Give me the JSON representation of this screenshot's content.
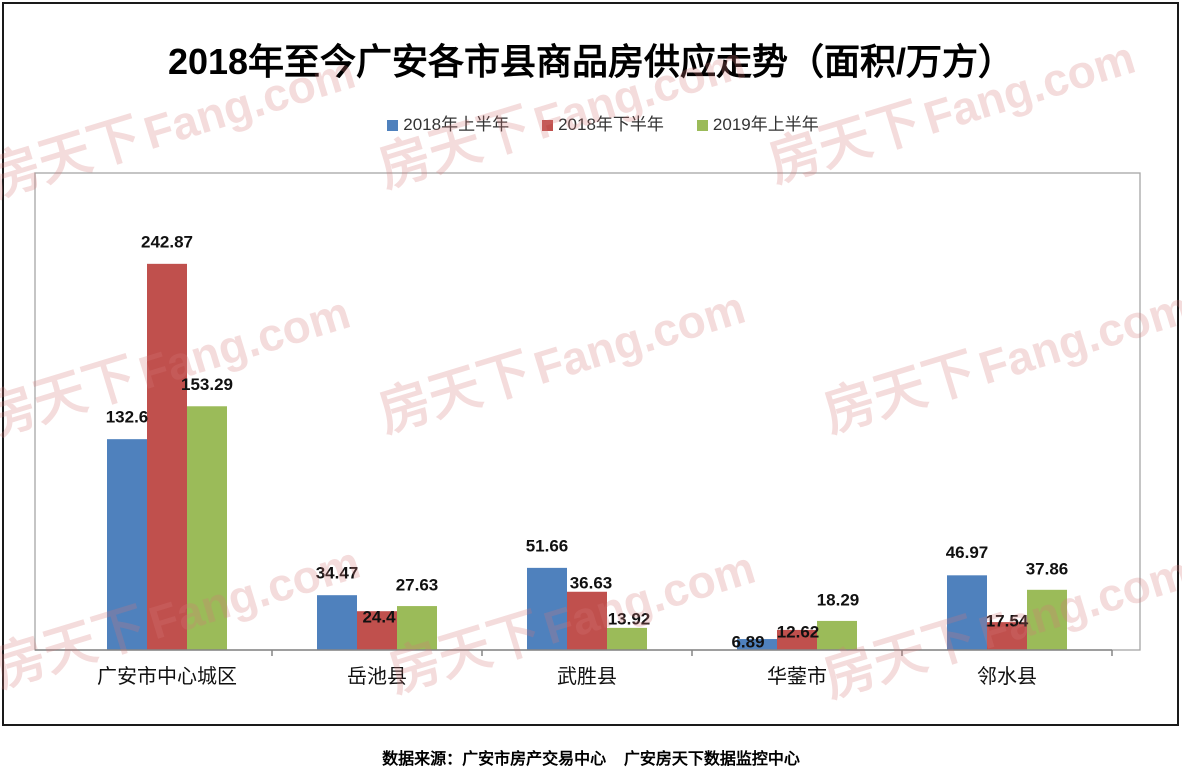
{
  "colors": {
    "series": [
      "#4F81BD",
      "#C0504D",
      "#9BBB59"
    ]
  },
  "watermark": {
    "cn": "房天下",
    "en": "Fang.com"
  },
  "source_note": "数据来源：广安市房产交易中心    广安房天下数据监控中心",
  "chart_data": {
    "type": "bar",
    "title": "2018年至今广安各市县商品房供应走势（面积/万方）",
    "categories": [
      "广安市中心城区",
      "岳池县",
      "武胜县",
      "华蓥市",
      "邻水县"
    ],
    "series": [
      {
        "name": "2018年上半年",
        "values": [
          132.6,
          34.47,
          51.66,
          6.89,
          46.97
        ]
      },
      {
        "name": "2018年下半年",
        "values": [
          242.87,
          24.4,
          36.63,
          12.62,
          17.54
        ]
      },
      {
        "name": "2019年上半年",
        "values": [
          153.29,
          27.63,
          13.92,
          18.29,
          37.86
        ]
      }
    ],
    "ylim": [
      0,
      300
    ],
    "grid": false,
    "legend": "top",
    "data_labels": true
  }
}
